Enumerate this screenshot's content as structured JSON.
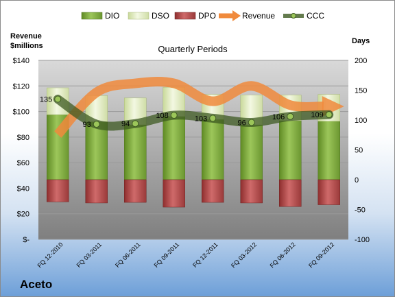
{
  "company": "Aceto",
  "chart_data": {
    "type": "bar",
    "title": "Quarterly Periods",
    "y_left_label": "Revenue\n$millions",
    "y_right_label": "Days",
    "categories": [
      "FQ 12-2010",
      "FQ 03-2011",
      "FQ 06-2011",
      "FQ 09-2011",
      "FQ 12-2011",
      "FQ 03-2012",
      "FQ 06-2012",
      "FQ 09-2012"
    ],
    "y_left_ticks": [
      "$-",
      "$20",
      "$40",
      "$60",
      "$80",
      "$100",
      "$120",
      "$140"
    ],
    "y_left_lim": [
      0,
      140
    ],
    "y_right_ticks": [
      "-100",
      "-50",
      "0",
      "50",
      "100",
      "150",
      "200"
    ],
    "y_right_lim": [
      -100,
      200
    ],
    "grid": true,
    "legend_position": "top",
    "series": [
      {
        "name": "DIO",
        "axis": "right",
        "color": "#7aa33a",
        "values": [
          109,
          97,
          92,
          106,
          101,
          92,
          99,
          98
        ]
      },
      {
        "name": "DSO",
        "axis": "right",
        "color": "#e3edc4",
        "values": [
          45,
          44,
          45,
          49,
          42,
          50,
          43,
          45
        ]
      },
      {
        "name": "DPO",
        "axis": "right",
        "color": "#b54a4a",
        "values": [
          -37,
          -39,
          -38,
          -46,
          -38,
          -39,
          -45,
          -42
        ]
      },
      {
        "name": "Revenue",
        "axis": "left",
        "color": "#f08a3c",
        "values": [
          82,
          115,
          122,
          122,
          108,
          120,
          105,
          104
        ]
      },
      {
        "name": "CCC",
        "axis": "right",
        "color": "#4e6b2e",
        "values": [
          135,
          93,
          94,
          108,
          103,
          96,
          106,
          109
        ]
      }
    ],
    "ccc_labels": [
      "135",
      "93",
      "94",
      "108",
      "103",
      "96",
      "106",
      "109"
    ]
  }
}
